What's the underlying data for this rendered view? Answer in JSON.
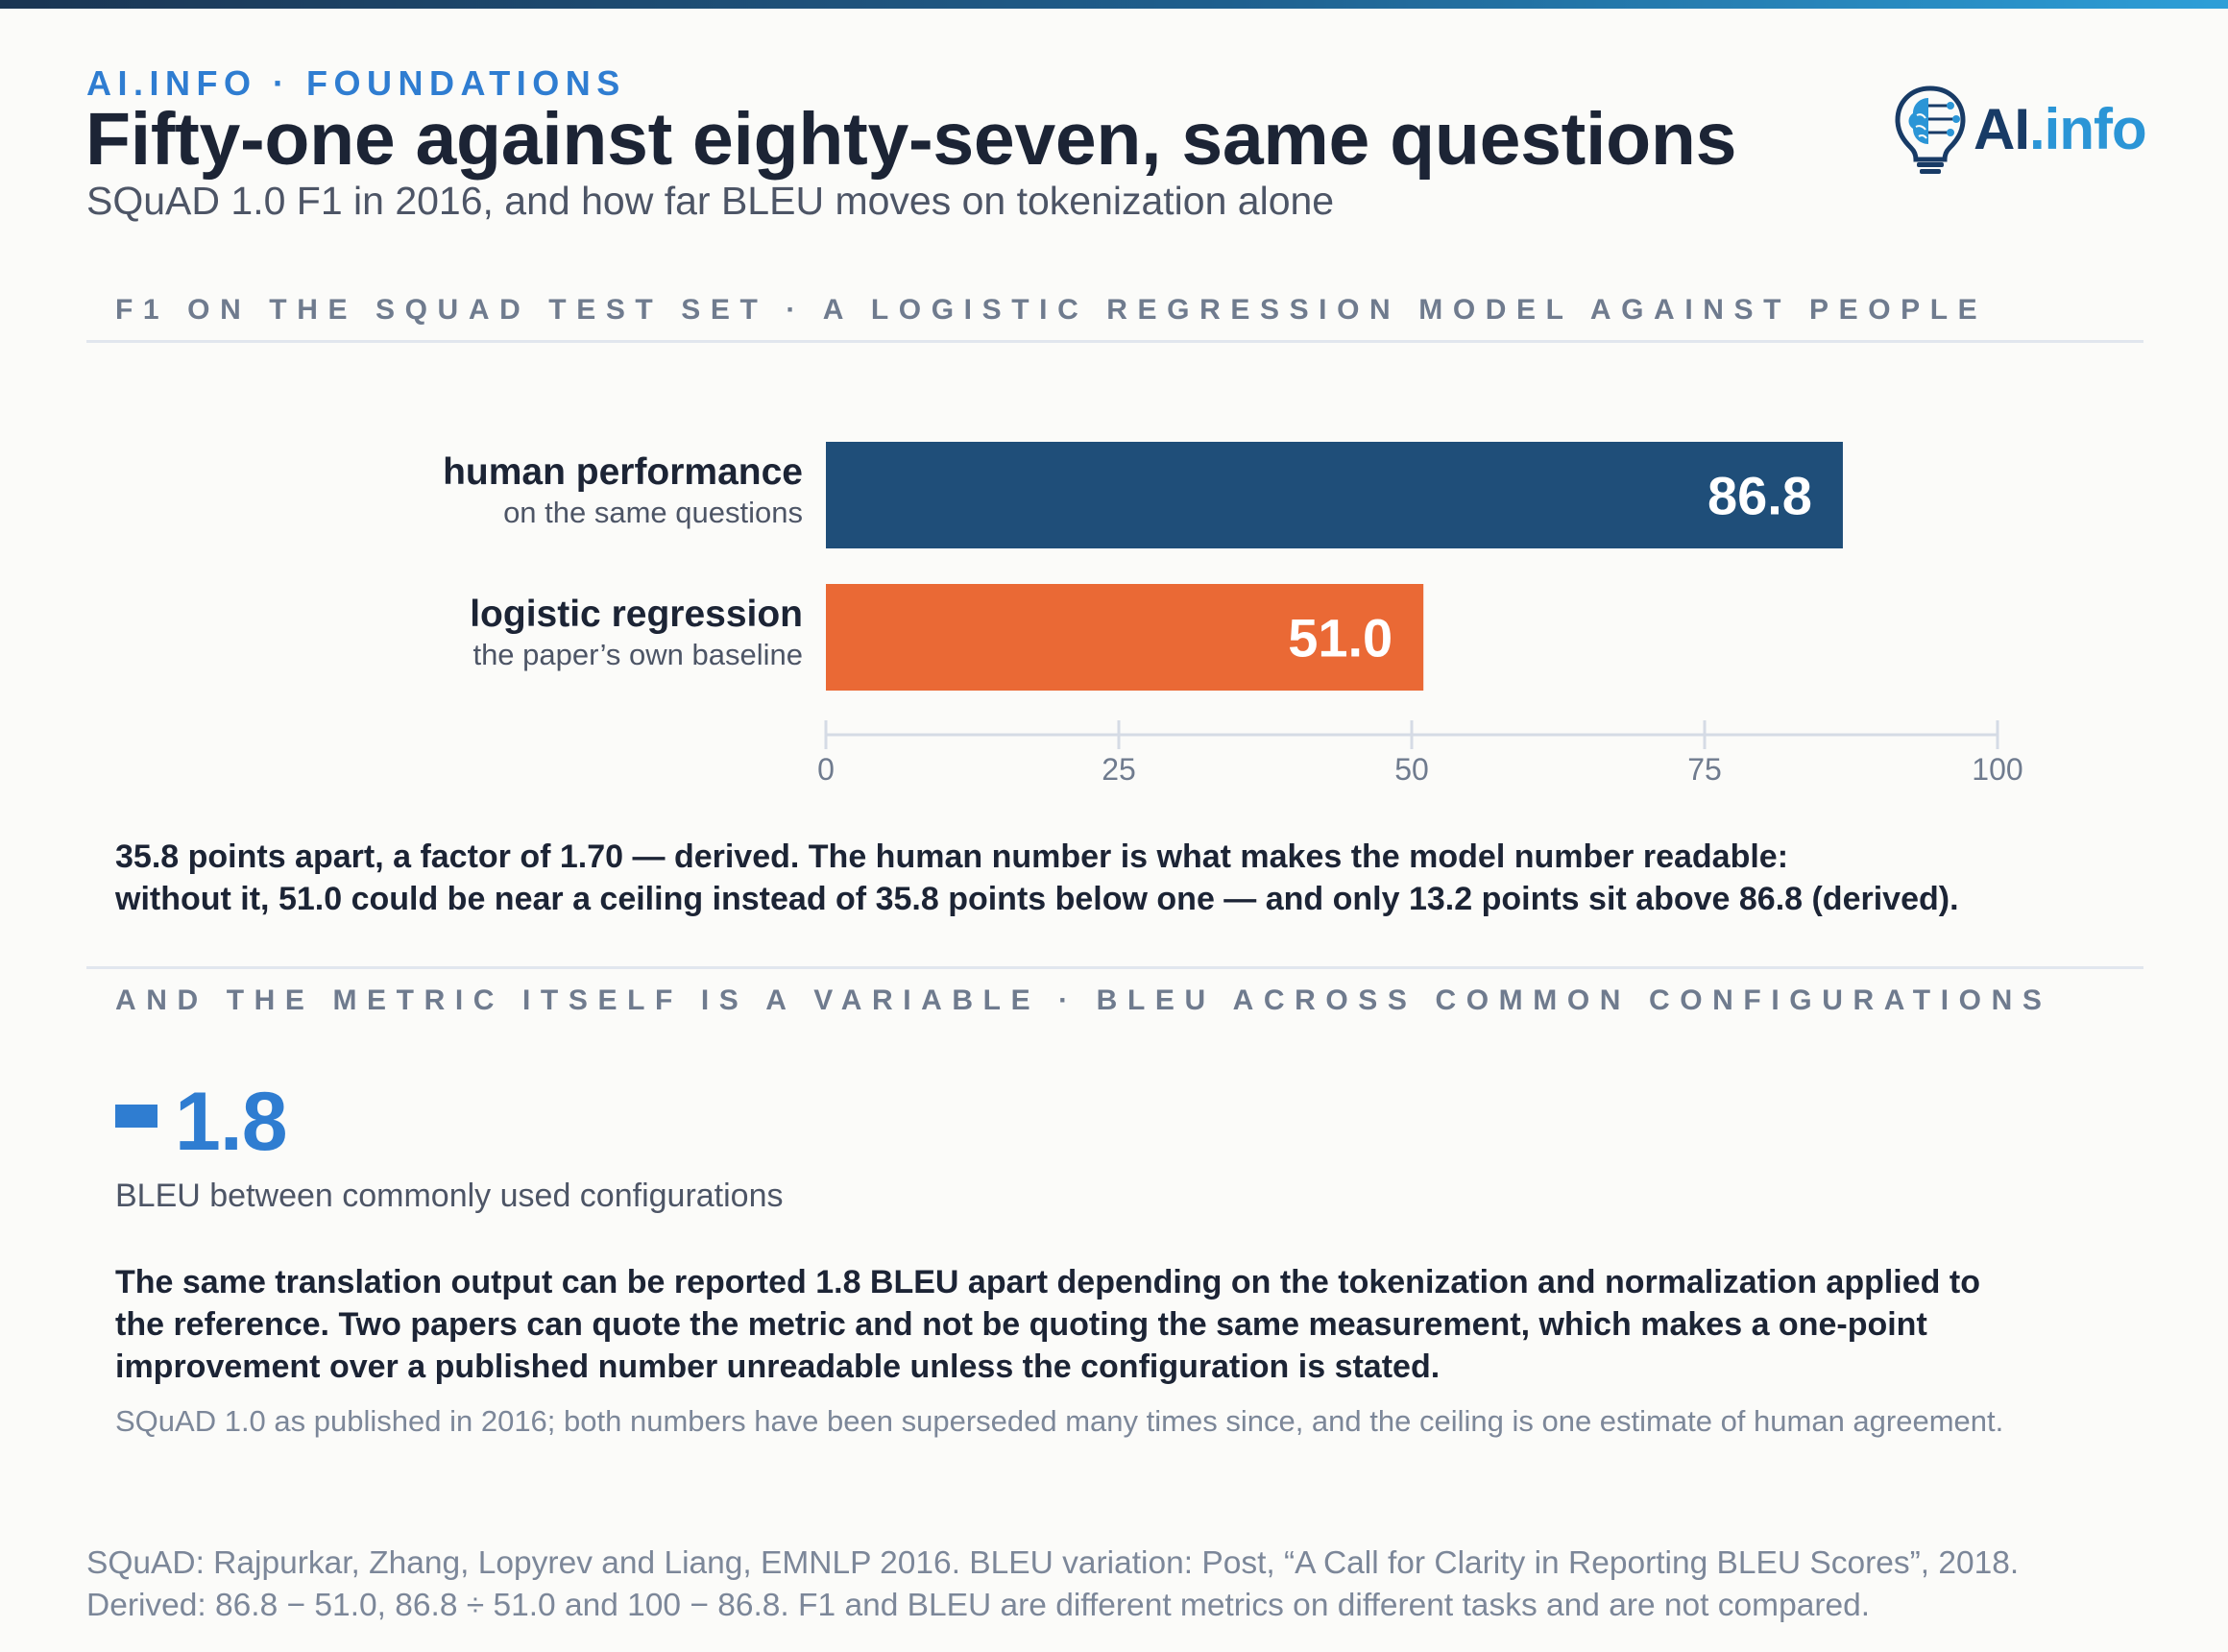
{
  "header": {
    "eyebrow": "AI.INFO · FOUNDATIONS",
    "title": "Fifty-one against eighty-seven, same questions",
    "subtitle": "SQuAD 1.0 F1 in 2016, and how far BLEU moves on tokenization alone",
    "logo": {
      "prefix": "AI",
      "suffix": ".info",
      "icon": "lightbulb-brain-icon"
    }
  },
  "section1": {
    "label": "F1 ON THE SQUAD TEST SET · A LOGISTIC REGRESSION MODEL AGAINST PEOPLE"
  },
  "chart_data": {
    "type": "bar",
    "orientation": "horizontal",
    "title": "F1 ON THE SQUAD TEST SET · A LOGISTIC REGRESSION MODEL AGAINST PEOPLE",
    "categories": [
      "human performance",
      "logistic regression"
    ],
    "category_notes": [
      "on the same questions",
      "the paper’s own baseline"
    ],
    "values": [
      86.8,
      51.0
    ],
    "value_labels": [
      "86.8",
      "51.0"
    ],
    "colors": [
      "#1f4e79",
      "#ea6935"
    ],
    "xlim": [
      0,
      100
    ],
    "xticks": [
      0,
      25,
      50,
      75,
      100
    ],
    "xlabel": "",
    "ylabel": "",
    "grid": false,
    "legend": "none"
  },
  "notes": {
    "line1": "35.8 points apart, a factor of 1.70 — derived. The human number is what makes the model number readable:",
    "line2": "without it, 51.0 could be near a ceiling instead of 35.8 points below one — and only 13.2 points sit above 86.8 (derived)."
  },
  "section2": {
    "label": "AND THE METRIC ITSELF IS A VARIABLE · BLEU ACROSS COMMON CONFIGURATIONS",
    "stat_value": "1.8",
    "stat_caption": "BLEU between commonly used configurations",
    "body_line1": "The same translation output can be reported 1.8 BLEU apart depending on the tokenization and normalization applied to",
    "body_line2": "the reference. Two papers can quote the metric and not be quoting the same measurement, which makes a one-point",
    "body_line3": "improvement over a published number unreadable unless the configuration is stated.",
    "caveat": "SQuAD 1.0 as published in 2016; both numbers have been superseded many times since, and the ceiling is one estimate of human agreement."
  },
  "footer": {
    "source_line1": "SQuAD: Rajpurkar, Zhang, Lopyrev and Liang, EMNLP 2016. BLEU variation: Post, “A Call for Clarity in Reporting BLEU Scores”, 2018.",
    "source_line2": "Derived: 86.8 − 51.0, 86.8 ÷ 51.0 and 100 − 86.8. F1 and BLEU are different metrics on different tasks and are not compared."
  },
  "colors": {
    "accent": "#2f7dd1",
    "navy": "#1f4e79",
    "orange": "#ea6935",
    "text": "#1c2435",
    "muted": "#7c8799"
  }
}
